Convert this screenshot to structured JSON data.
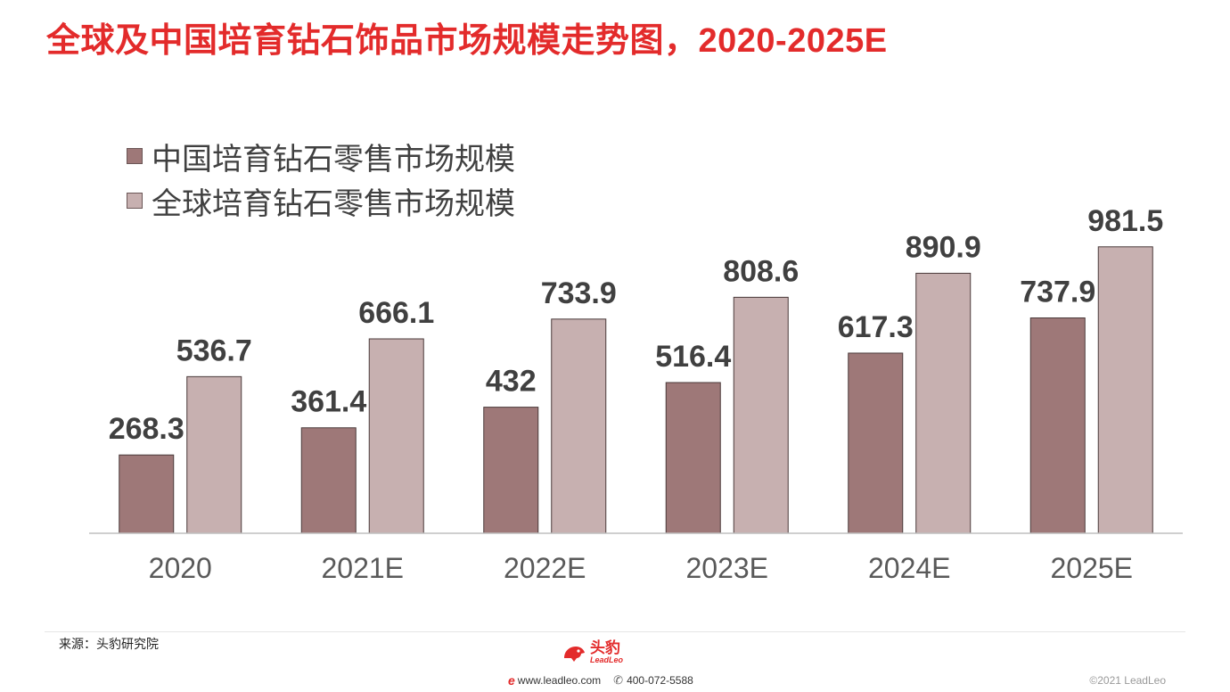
{
  "title": "全球及中国培育钻石饰品市场规模走势图，2020-2025E",
  "source": "来源：头豹研究院",
  "footer": {
    "logo_cn": "头豹",
    "logo_en": "LeadLeo",
    "website": "www.leadleo.com",
    "phone": "400-072-5588",
    "copyright": "©2021 LeadLeo"
  },
  "colors": {
    "title": "#e32b2b",
    "china_series": "#9e7878",
    "global_series": "#c7b0b0",
    "axis": "#bfbfbf",
    "label": "#404040"
  },
  "chart_data": {
    "type": "bar",
    "categories": [
      "2020",
      "2021E",
      "2022E",
      "2023E",
      "2024E",
      "2025E"
    ],
    "series": [
      {
        "name": "中国培育钻石零售市场规模",
        "values": [
          268.3,
          361.4,
          432,
          516.4,
          617.3,
          737.9
        ],
        "labels": [
          "268.3",
          "361.4",
          "432",
          "516.4",
          "617.3",
          "737.9"
        ]
      },
      {
        "name": "全球培育钻石零售市场规模",
        "values": [
          536.7,
          666.1,
          733.9,
          808.6,
          890.9,
          981.5
        ],
        "labels": [
          "536.7",
          "666.1",
          "733.9",
          "808.6",
          "890.9",
          "981.5"
        ]
      }
    ],
    "ylim": [
      0,
      1100
    ],
    "legend_position": "top-left",
    "grid": false
  }
}
